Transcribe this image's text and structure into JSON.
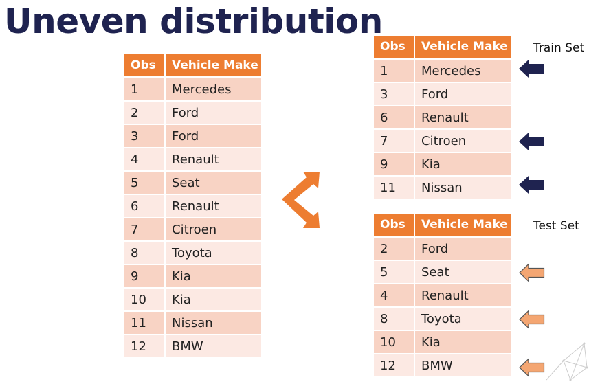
{
  "title": "Uneven distribution",
  "headers": {
    "obs": "Obs",
    "make": "Vehicle Make"
  },
  "full_table": {
    "rows": [
      {
        "obs": "1",
        "make": "Mercedes"
      },
      {
        "obs": "2",
        "make": "Ford"
      },
      {
        "obs": "3",
        "make": "Ford"
      },
      {
        "obs": "4",
        "make": "Renault"
      },
      {
        "obs": "5",
        "make": "Seat"
      },
      {
        "obs": "6",
        "make": "Renault"
      },
      {
        "obs": "7",
        "make": "Citroen"
      },
      {
        "obs": "8",
        "make": "Toyota"
      },
      {
        "obs": "9",
        "make": "Kia"
      },
      {
        "obs": "10",
        "make": "Kia"
      },
      {
        "obs": "11",
        "make": "Nissan"
      },
      {
        "obs": "12",
        "make": "BMW"
      }
    ]
  },
  "train_set": {
    "label": "Train Set",
    "rows": [
      {
        "obs": "1",
        "make": "Mercedes"
      },
      {
        "obs": "3",
        "make": "Ford"
      },
      {
        "obs": "6",
        "make": "Renault"
      },
      {
        "obs": "7",
        "make": "Citroen"
      },
      {
        "obs": "9",
        "make": "Kia"
      },
      {
        "obs": "11",
        "make": "Nissan"
      }
    ],
    "arrow_color": "#1f2350"
  },
  "test_set": {
    "label": "Test Set",
    "rows": [
      {
        "obs": "2",
        "make": "Ford"
      },
      {
        "obs": "5",
        "make": "Seat"
      },
      {
        "obs": "4",
        "make": "Renault"
      },
      {
        "obs": "8",
        "make": "Toyota"
      },
      {
        "obs": "10",
        "make": "Kia"
      },
      {
        "obs": "12",
        "make": "BMW"
      }
    ],
    "arrow_color": "#f4a672"
  },
  "colors": {
    "header": "#ed7d31",
    "row_dark": "#f8d3c4",
    "row_light": "#fce9e3",
    "title": "#1f2350",
    "split_arrow": "#ed7d31"
  }
}
